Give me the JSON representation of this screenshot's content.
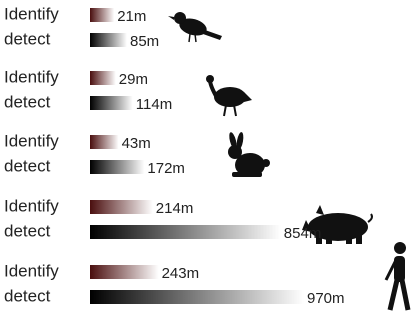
{
  "chart_data": {
    "type": "bar",
    "categories": [
      null,
      null,
      null,
      null,
      null
    ],
    "series": [
      {
        "name": "Identify",
        "color": "#4a0e0e",
        "values": [
          21,
          29,
          43,
          214,
          243
        ],
        "value_labels": [
          "21m",
          "29m",
          "43m",
          "214m",
          "243m"
        ]
      },
      {
        "name": "detect",
        "color": "#000000",
        "values": [
          85,
          114,
          172,
          854,
          970
        ],
        "value_labels": [
          "85m",
          "114m",
          "172m",
          "854m",
          "970m"
        ]
      }
    ]
  }
}
